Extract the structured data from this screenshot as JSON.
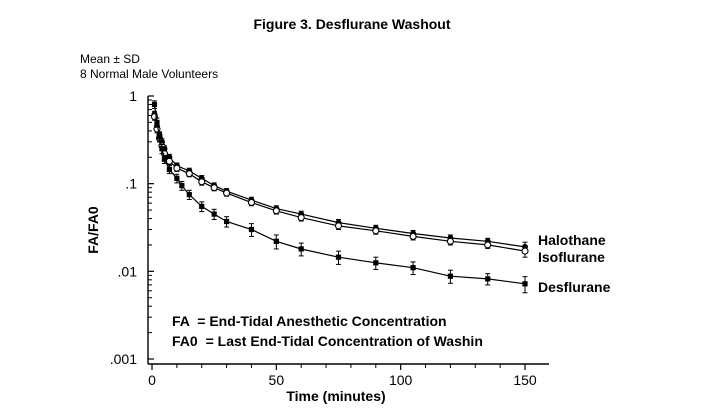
{
  "chart_data": {
    "type": "line",
    "title": "Figure 3. Desflurane Washout",
    "subtitle_lines": [
      "Mean ± SD",
      "8 Normal Male Volunteers"
    ],
    "xlabel": "Time (minutes)",
    "ylabel": "FA/FA0",
    "y_scale": "log",
    "xlim": [
      0,
      155
    ],
    "ylim": [
      0.001,
      1
    ],
    "x_ticks": [
      0,
      50,
      100,
      150
    ],
    "y_ticks": [
      {
        "value": 1,
        "label": "1"
      },
      {
        "value": 0.1,
        "label": ".1"
      },
      {
        "value": 0.01,
        "label": ".01"
      },
      {
        "value": 0.001,
        "label": ".001"
      }
    ],
    "grid": false,
    "series": [
      {
        "name": "Halothane",
        "marker": "filled-circle",
        "x": [
          1,
          2,
          3,
          4,
          5,
          7,
          10,
          15,
          20,
          25,
          30,
          40,
          50,
          60,
          75,
          90,
          105,
          120,
          135,
          150
        ],
        "y": [
          0.62,
          0.45,
          0.36,
          0.3,
          0.25,
          0.2,
          0.16,
          0.14,
          0.115,
          0.095,
          0.082,
          0.065,
          0.052,
          0.045,
          0.036,
          0.031,
          0.027,
          0.024,
          0.022,
          0.019
        ],
        "err": [
          0.05,
          0.04,
          0.03,
          0.025,
          0.02,
          0.016,
          0.012,
          0.01,
          0.009,
          0.007,
          0.006,
          0.005,
          0.004,
          0.0035,
          0.003,
          0.0025,
          0.0022,
          0.002,
          0.0018,
          0.0025
        ]
      },
      {
        "name": "Isoflurane",
        "marker": "open-circle",
        "x": [
          1,
          2,
          3,
          4,
          5,
          7,
          10,
          15,
          20,
          25,
          30,
          40,
          50,
          60,
          75,
          90,
          105,
          120,
          135,
          150
        ],
        "y": [
          0.58,
          0.42,
          0.33,
          0.27,
          0.22,
          0.18,
          0.15,
          0.13,
          0.105,
          0.09,
          0.078,
          0.061,
          0.049,
          0.041,
          0.033,
          0.029,
          0.025,
          0.022,
          0.02,
          0.017
        ],
        "err": [
          0.05,
          0.04,
          0.03,
          0.025,
          0.02,
          0.016,
          0.012,
          0.01,
          0.009,
          0.007,
          0.006,
          0.005,
          0.004,
          0.0035,
          0.003,
          0.0025,
          0.0022,
          0.002,
          0.0018,
          0.0025
        ]
      },
      {
        "name": "Desflurane",
        "marker": "filled-square",
        "x": [
          1,
          2,
          3,
          4,
          5,
          7,
          10,
          12,
          15,
          20,
          25,
          30,
          40,
          50,
          60,
          75,
          90,
          105,
          120,
          135,
          150
        ],
        "y": [
          0.8,
          0.5,
          0.34,
          0.25,
          0.19,
          0.145,
          0.115,
          0.095,
          0.075,
          0.055,
          0.045,
          0.037,
          0.03,
          0.022,
          0.018,
          0.0145,
          0.0125,
          0.011,
          0.0088,
          0.0082,
          0.0072
        ],
        "err": [
          0.08,
          0.06,
          0.04,
          0.03,
          0.02,
          0.015,
          0.013,
          0.011,
          0.009,
          0.007,
          0.006,
          0.005,
          0.005,
          0.004,
          0.003,
          0.0025,
          0.002,
          0.0018,
          0.0015,
          0.0012,
          0.0015
        ]
      }
    ],
    "definitions": [
      {
        "symbol": "FA",
        "text": "= End-Tidal Anesthetic Concentration"
      },
      {
        "symbol": "FA0",
        "text": "= Last End-Tidal Concentration of Washin"
      }
    ]
  }
}
